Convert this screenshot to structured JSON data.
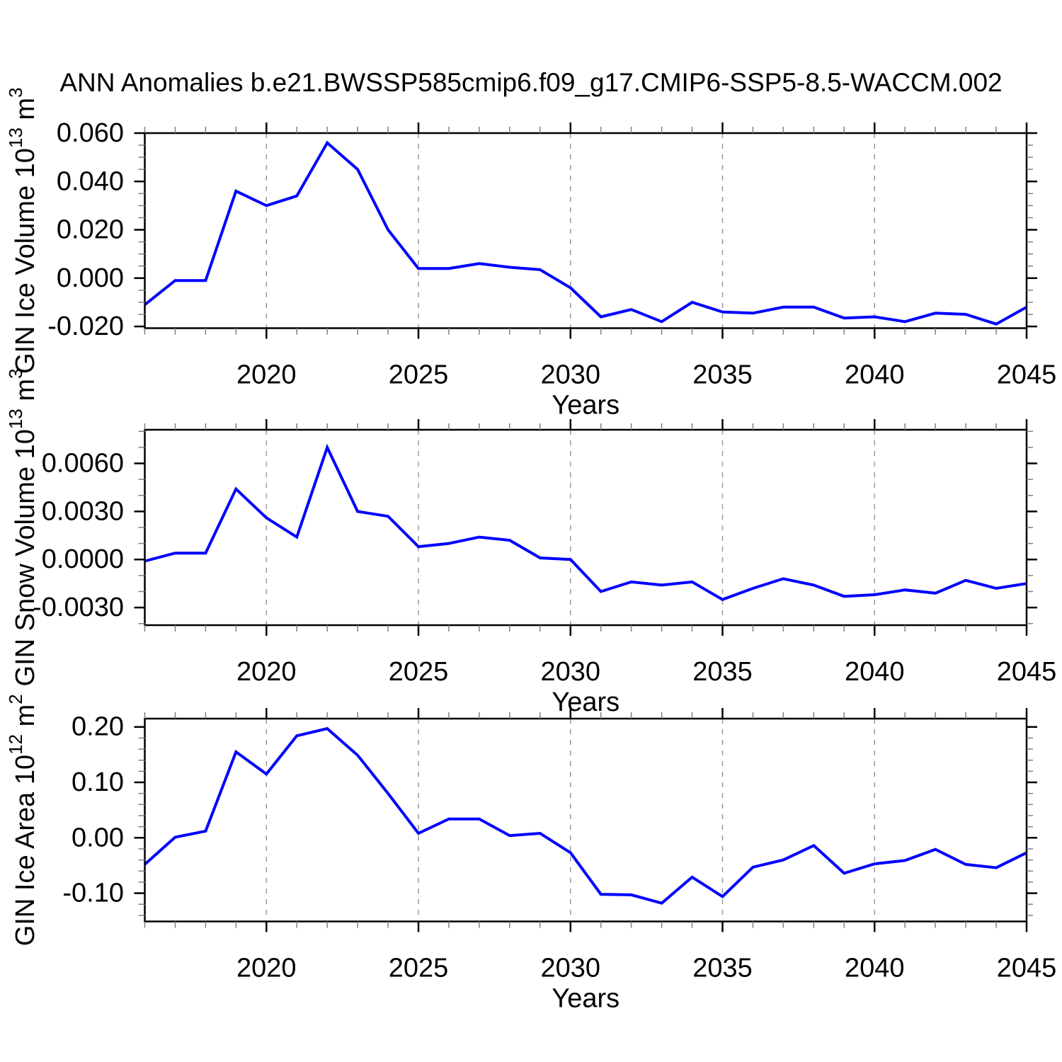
{
  "title": "ANN Anomalies b.e21.BWSSP585cmip6.f09_g17.CMIP6-SSP5-8.5-WACCM.002",
  "colors": {
    "line": "#0000ff",
    "axis": "#000000",
    "major_tick": "#000000",
    "minor_tick": "#808080",
    "gridline": "#999999",
    "background": "#ffffff"
  },
  "x_axis": {
    "label": "Years",
    "range": [
      2016,
      2045
    ],
    "years": [
      2016,
      2017,
      2018,
      2019,
      2020,
      2021,
      2022,
      2023,
      2024,
      2025,
      2026,
      2027,
      2028,
      2029,
      2030,
      2031,
      2032,
      2033,
      2034,
      2035,
      2036,
      2037,
      2038,
      2039,
      2040,
      2041,
      2042,
      2043,
      2044,
      2045
    ],
    "major_ticks": [
      2020,
      2025,
      2030,
      2035,
      2040,
      2045
    ],
    "major_tick_labels": [
      "2020",
      "2025",
      "2030",
      "2035",
      "2040",
      "2045"
    ],
    "minor_tick_step": 1,
    "gridline_years": [
      2020,
      2025,
      2030,
      2035,
      2040
    ],
    "grid_style": "dashed"
  },
  "chart_data": [
    {
      "type": "line",
      "id": "gin-ice-volume",
      "ylabel_plain": "GIN Ice Volume 10^13 m^3",
      "ylabel_segments": [
        [
          "GIN Ice Volume 10",
          0
        ],
        [
          "13",
          1
        ],
        [
          " m",
          0
        ],
        [
          "3",
          1
        ]
      ],
      "xlabel": "Years",
      "legend": "none",
      "x": [
        2016,
        2017,
        2018,
        2019,
        2020,
        2021,
        2022,
        2023,
        2024,
        2025,
        2026,
        2027,
        2028,
        2029,
        2030,
        2031,
        2032,
        2033,
        2034,
        2035,
        2036,
        2037,
        2038,
        2039,
        2040,
        2041,
        2042,
        2043,
        2044,
        2045
      ],
      "values": [
        -0.011,
        -0.001,
        -0.001,
        0.036,
        0.03,
        0.034,
        0.056,
        0.045,
        0.02,
        0.004,
        0.004,
        0.006,
        0.0045,
        0.0035,
        -0.004,
        -0.016,
        -0.013,
        -0.018,
        -0.01,
        -0.014,
        -0.0145,
        -0.012,
        -0.012,
        -0.0165,
        -0.016,
        -0.018,
        -0.0145,
        -0.015,
        -0.019,
        -0.012
      ],
      "yticks": {
        "values": [
          0.06,
          0.04,
          0.02,
          0.0,
          -0.02
        ],
        "labels": [
          "0.060",
          "0.040",
          "0.020",
          "0.000",
          "-0.020"
        ],
        "minor_step": 0.005
      },
      "ylim": [
        -0.0207,
        0.06
      ]
    },
    {
      "type": "line",
      "id": "gin-snow-volume",
      "ylabel_plain": "GIN Snow Volume 10^13 m^3",
      "ylabel_segments": [
        [
          "GIN Snow Volume 10",
          0
        ],
        [
          "13",
          1
        ],
        [
          " m",
          0
        ],
        [
          "3",
          1
        ]
      ],
      "xlabel": "Years",
      "legend": "none",
      "x": [
        2016,
        2017,
        2018,
        2019,
        2020,
        2021,
        2022,
        2023,
        2024,
        2025,
        2026,
        2027,
        2028,
        2029,
        2030,
        2031,
        2032,
        2033,
        2034,
        2035,
        2036,
        2037,
        2038,
        2039,
        2040,
        2041,
        2042,
        2043,
        2044,
        2045
      ],
      "values": [
        -0.0001,
        0.0004,
        0.0004,
        0.0044,
        0.0026,
        0.0014,
        0.007,
        0.003,
        0.0027,
        0.0008,
        0.001,
        0.0014,
        0.0012,
        0.0001,
        0.0,
        -0.002,
        -0.0014,
        -0.0016,
        -0.0014,
        -0.0025,
        -0.0018,
        -0.0012,
        -0.0016,
        -0.0023,
        -0.0022,
        -0.0019,
        -0.0021,
        -0.0013,
        -0.0018,
        -0.0015
      ],
      "yticks": {
        "values": [
          0.006,
          0.003,
          0.0,
          -0.003
        ],
        "labels": [
          "0.0060",
          "0.0030",
          "0.0000",
          "-0.0030"
        ],
        "minor_step": 0.001
      },
      "ylim": [
        -0.0041,
        0.0081
      ]
    },
    {
      "type": "line",
      "id": "gin-ice-area",
      "ylabel_plain": "GIN Ice Area 10^12 m^2",
      "ylabel_segments": [
        [
          "GIN Ice Area 10",
          0
        ],
        [
          "12",
          1
        ],
        [
          " m",
          0
        ],
        [
          "2",
          1
        ]
      ],
      "xlabel": "Years",
      "legend": "none",
      "x": [
        2016,
        2017,
        2018,
        2019,
        2020,
        2021,
        2022,
        2023,
        2024,
        2025,
        2026,
        2027,
        2028,
        2029,
        2030,
        2031,
        2032,
        2033,
        2034,
        2035,
        2036,
        2037,
        2038,
        2039,
        2040,
        2041,
        2042,
        2043,
        2044,
        2045
      ],
      "values": [
        -0.048,
        0.001,
        0.012,
        0.155,
        0.115,
        0.184,
        0.197,
        0.149,
        0.08,
        0.008,
        0.034,
        0.034,
        0.004,
        0.008,
        -0.027,
        -0.102,
        -0.103,
        -0.118,
        -0.071,
        -0.106,
        -0.053,
        -0.04,
        -0.014,
        -0.064,
        -0.047,
        -0.041,
        -0.021,
        -0.048,
        -0.054,
        -0.027
      ],
      "yticks": {
        "values": [
          0.2,
          0.1,
          0.0,
          -0.1
        ],
        "labels": [
          "0.20",
          "0.10",
          "0.00",
          "-0.10"
        ],
        "minor_step": 0.02
      },
      "ylim": [
        -0.151,
        0.215
      ]
    }
  ]
}
